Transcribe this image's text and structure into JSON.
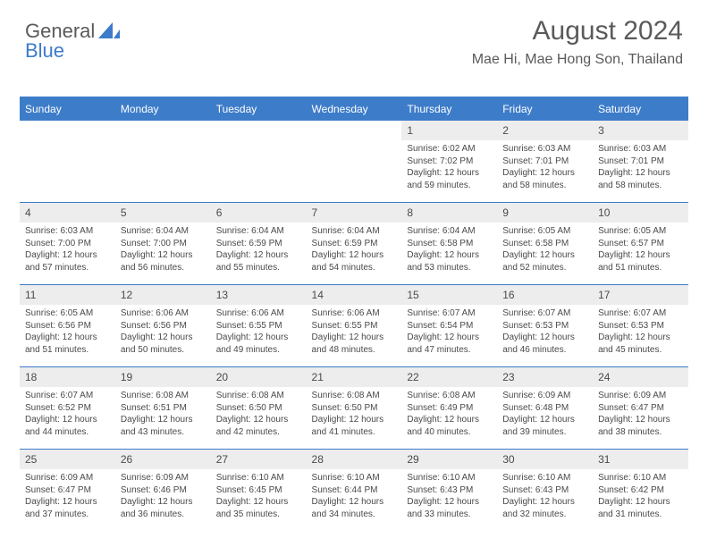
{
  "brand": {
    "word1": "General",
    "word2": "Blue"
  },
  "title": {
    "month": "August 2024",
    "location": "Mae Hi, Mae Hong Son, Thailand"
  },
  "colors": {
    "accent": "#3d7cc9",
    "text": "#5a5a5a",
    "cell_header": "#ededed",
    "body_text": "#4a4a4a",
    "background": "#ffffff"
  },
  "weekdays": [
    "Sunday",
    "Monday",
    "Tuesday",
    "Wednesday",
    "Thursday",
    "Friday",
    "Saturday"
  ],
  "grid": [
    [
      null,
      null,
      null,
      null,
      {
        "n": "1",
        "sr": "6:02 AM",
        "ss": "7:02 PM",
        "dl": "12 hours and 59 minutes."
      },
      {
        "n": "2",
        "sr": "6:03 AM",
        "ss": "7:01 PM",
        "dl": "12 hours and 58 minutes."
      },
      {
        "n": "3",
        "sr": "6:03 AM",
        "ss": "7:01 PM",
        "dl": "12 hours and 58 minutes."
      }
    ],
    [
      {
        "n": "4",
        "sr": "6:03 AM",
        "ss": "7:00 PM",
        "dl": "12 hours and 57 minutes."
      },
      {
        "n": "5",
        "sr": "6:04 AM",
        "ss": "7:00 PM",
        "dl": "12 hours and 56 minutes."
      },
      {
        "n": "6",
        "sr": "6:04 AM",
        "ss": "6:59 PM",
        "dl": "12 hours and 55 minutes."
      },
      {
        "n": "7",
        "sr": "6:04 AM",
        "ss": "6:59 PM",
        "dl": "12 hours and 54 minutes."
      },
      {
        "n": "8",
        "sr": "6:04 AM",
        "ss": "6:58 PM",
        "dl": "12 hours and 53 minutes."
      },
      {
        "n": "9",
        "sr": "6:05 AM",
        "ss": "6:58 PM",
        "dl": "12 hours and 52 minutes."
      },
      {
        "n": "10",
        "sr": "6:05 AM",
        "ss": "6:57 PM",
        "dl": "12 hours and 51 minutes."
      }
    ],
    [
      {
        "n": "11",
        "sr": "6:05 AM",
        "ss": "6:56 PM",
        "dl": "12 hours and 51 minutes."
      },
      {
        "n": "12",
        "sr": "6:06 AM",
        "ss": "6:56 PM",
        "dl": "12 hours and 50 minutes."
      },
      {
        "n": "13",
        "sr": "6:06 AM",
        "ss": "6:55 PM",
        "dl": "12 hours and 49 minutes."
      },
      {
        "n": "14",
        "sr": "6:06 AM",
        "ss": "6:55 PM",
        "dl": "12 hours and 48 minutes."
      },
      {
        "n": "15",
        "sr": "6:07 AM",
        "ss": "6:54 PM",
        "dl": "12 hours and 47 minutes."
      },
      {
        "n": "16",
        "sr": "6:07 AM",
        "ss": "6:53 PM",
        "dl": "12 hours and 46 minutes."
      },
      {
        "n": "17",
        "sr": "6:07 AM",
        "ss": "6:53 PM",
        "dl": "12 hours and 45 minutes."
      }
    ],
    [
      {
        "n": "18",
        "sr": "6:07 AM",
        "ss": "6:52 PM",
        "dl": "12 hours and 44 minutes."
      },
      {
        "n": "19",
        "sr": "6:08 AM",
        "ss": "6:51 PM",
        "dl": "12 hours and 43 minutes."
      },
      {
        "n": "20",
        "sr": "6:08 AM",
        "ss": "6:50 PM",
        "dl": "12 hours and 42 minutes."
      },
      {
        "n": "21",
        "sr": "6:08 AM",
        "ss": "6:50 PM",
        "dl": "12 hours and 41 minutes."
      },
      {
        "n": "22",
        "sr": "6:08 AM",
        "ss": "6:49 PM",
        "dl": "12 hours and 40 minutes."
      },
      {
        "n": "23",
        "sr": "6:09 AM",
        "ss": "6:48 PM",
        "dl": "12 hours and 39 minutes."
      },
      {
        "n": "24",
        "sr": "6:09 AM",
        "ss": "6:47 PM",
        "dl": "12 hours and 38 minutes."
      }
    ],
    [
      {
        "n": "25",
        "sr": "6:09 AM",
        "ss": "6:47 PM",
        "dl": "12 hours and 37 minutes."
      },
      {
        "n": "26",
        "sr": "6:09 AM",
        "ss": "6:46 PM",
        "dl": "12 hours and 36 minutes."
      },
      {
        "n": "27",
        "sr": "6:10 AM",
        "ss": "6:45 PM",
        "dl": "12 hours and 35 minutes."
      },
      {
        "n": "28",
        "sr": "6:10 AM",
        "ss": "6:44 PM",
        "dl": "12 hours and 34 minutes."
      },
      {
        "n": "29",
        "sr": "6:10 AM",
        "ss": "6:43 PM",
        "dl": "12 hours and 33 minutes."
      },
      {
        "n": "30",
        "sr": "6:10 AM",
        "ss": "6:43 PM",
        "dl": "12 hours and 32 minutes."
      },
      {
        "n": "31",
        "sr": "6:10 AM",
        "ss": "6:42 PM",
        "dl": "12 hours and 31 minutes."
      }
    ]
  ],
  "labels": {
    "sunrise": "Sunrise:",
    "sunset": "Sunset:",
    "daylight": "Daylight:"
  }
}
